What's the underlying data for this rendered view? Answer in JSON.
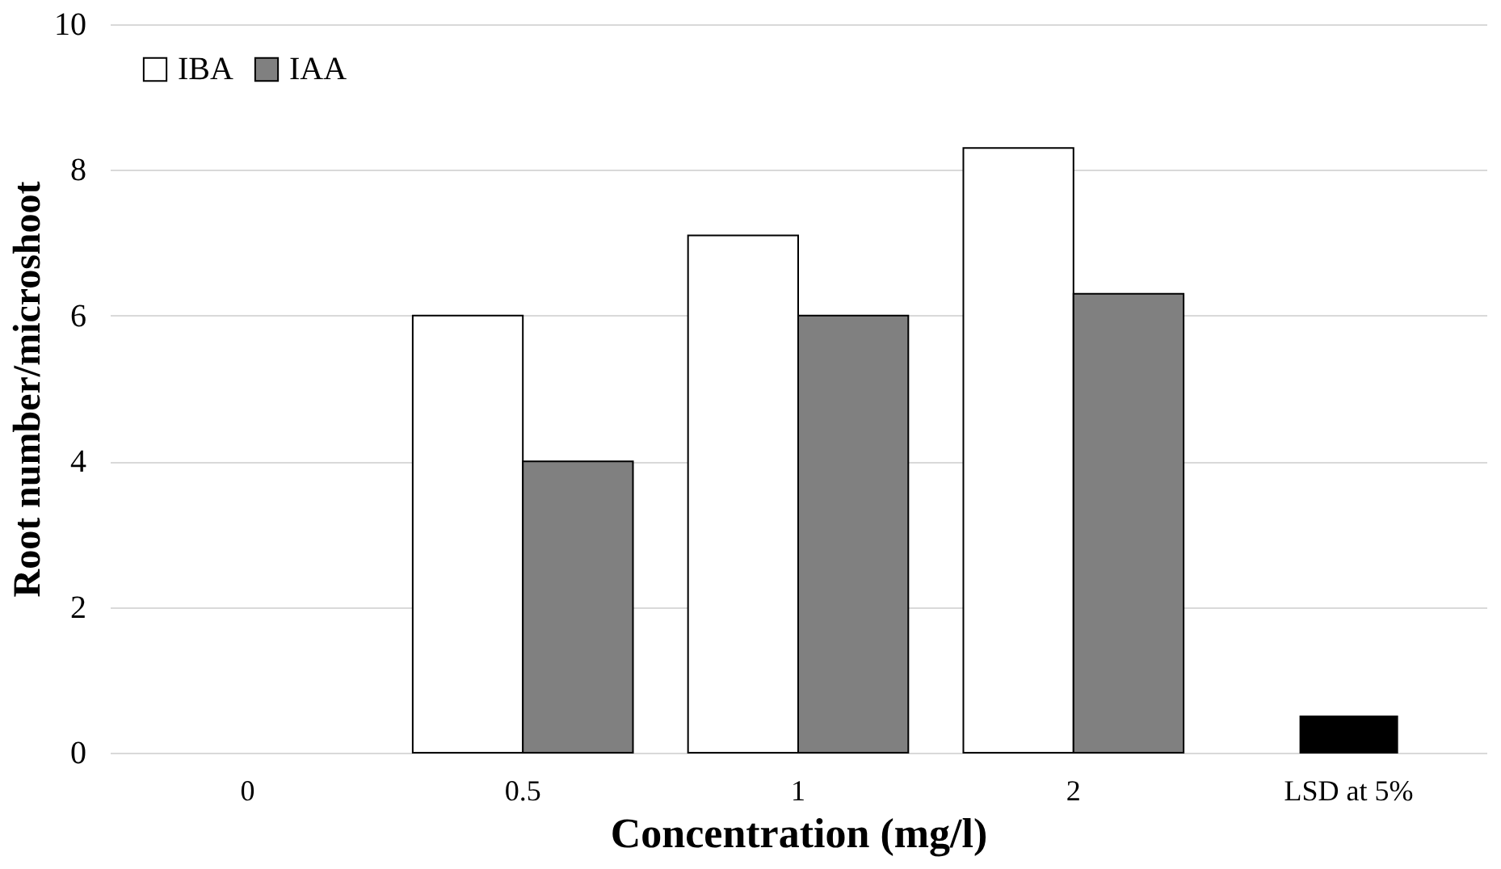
{
  "chart_data": {
    "type": "bar",
    "xlabel": "Concentration (mg/l)",
    "ylabel": "Root number/microshoot",
    "categories": [
      "0",
      "0.5",
      "1",
      "2",
      "LSD at 5%"
    ],
    "series": [
      {
        "name": "IBA",
        "color": "#ffffff",
        "values": [
          0,
          6.0,
          7.1,
          8.3,
          null
        ]
      },
      {
        "name": "IAA",
        "color": "#808080",
        "values": [
          0,
          4.0,
          6.0,
          6.3,
          null
        ]
      },
      {
        "color": "#000000",
        "values": [
          null,
          null,
          null,
          null,
          0.5
        ]
      }
    ],
    "ylim": [
      0,
      10
    ],
    "yticks": [
      0,
      2,
      4,
      6,
      8,
      10
    ],
    "grid": "y",
    "legend": "top left"
  }
}
